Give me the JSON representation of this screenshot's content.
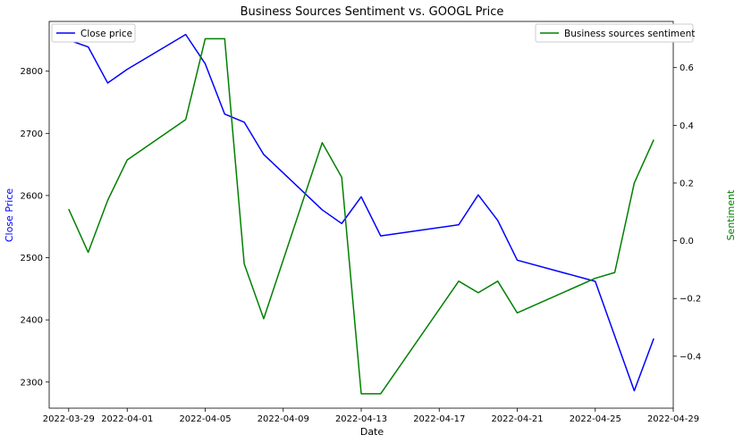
{
  "chart_data": {
    "type": "line",
    "title": "Business Sources Sentiment vs. GOOGL Price",
    "xlabel": "Date",
    "ylabel_left": "Close Price",
    "ylabel_right": "Sentiment",
    "x_ticks": [
      "2022-03-29",
      "2022-04-01",
      "2022-04-05",
      "2022-04-09",
      "2022-04-13",
      "2022-04-17",
      "2022-04-21",
      "2022-04-25",
      "2022-04-29"
    ],
    "xlim": [
      "2022-03-28",
      "2022-04-29"
    ],
    "ylim_left": [
      2258,
      2880
    ],
    "ylim_right": [
      -0.58,
      0.76
    ],
    "y_ticks_left": [
      2300,
      2400,
      2500,
      2600,
      2700,
      2800
    ],
    "y_ticks_right": [
      -0.4,
      -0.2,
      0.0,
      0.2,
      0.4,
      0.6
    ],
    "y_tick_labels_right": [
      "−0.4",
      "−0.2",
      "0.0",
      "0.2",
      "0.4",
      "0.6"
    ],
    "grid": false,
    "series": [
      {
        "name": "Close price",
        "axis": "left",
        "color": "#0000ff",
        "legend_position": "top-left",
        "x": [
          "2022-03-29",
          "2022-03-30",
          "2022-03-31",
          "2022-04-01",
          "2022-04-04",
          "2022-04-05",
          "2022-04-06",
          "2022-04-07",
          "2022-04-08",
          "2022-04-11",
          "2022-04-12",
          "2022-04-13",
          "2022-04-14",
          "2022-04-18",
          "2022-04-19",
          "2022-04-20",
          "2022-04-21",
          "2022-04-25",
          "2022-04-27",
          "2022-04-28"
        ],
        "values": [
          2850,
          2839,
          2781,
          2803,
          2859,
          2812,
          2731,
          2718,
          2666,
          2577,
          2555,
          2598,
          2535,
          2553,
          2601,
          2560,
          2496,
          2462,
          2286,
          2370
        ]
      },
      {
        "name": "Business sources sentiment",
        "axis": "right",
        "color": "#008000",
        "legend_position": "top-right",
        "x": [
          "2022-03-29",
          "2022-03-30",
          "2022-03-31",
          "2022-04-01",
          "2022-04-04",
          "2022-04-05",
          "2022-04-06",
          "2022-04-07",
          "2022-04-08",
          "2022-04-11",
          "2022-04-12",
          "2022-04-13",
          "2022-04-14",
          "2022-04-18",
          "2022-04-19",
          "2022-04-20",
          "2022-04-21",
          "2022-04-25",
          "2022-04-26",
          "2022-04-27",
          "2022-04-28"
        ],
        "values": [
          0.11,
          -0.04,
          0.14,
          0.28,
          0.42,
          0.7,
          0.7,
          -0.08,
          -0.27,
          0.34,
          0.22,
          -0.53,
          -0.53,
          -0.14,
          -0.18,
          -0.14,
          -0.25,
          -0.13,
          -0.11,
          0.2,
          0.35
        ]
      }
    ]
  }
}
